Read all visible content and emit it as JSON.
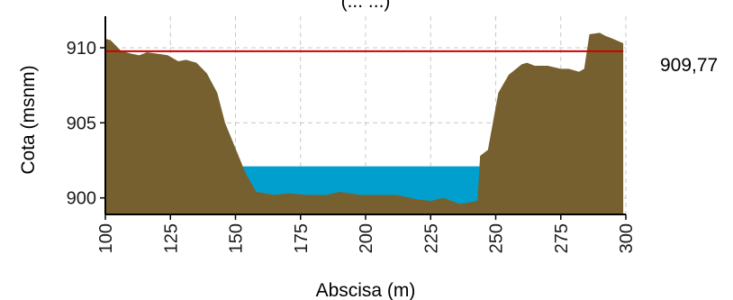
{
  "chart_data": {
    "type": "area",
    "title": "(... ...)",
    "xlabel": "Abscisa (m)",
    "ylabel": "Cota (msnm)",
    "xlim": [
      100,
      300
    ],
    "ylim": [
      898.9,
      912.1
    ],
    "x_ticks": [
      100,
      125,
      150,
      175,
      200,
      225,
      250,
      275,
      300
    ],
    "y_ticks": [
      900,
      905,
      910
    ],
    "grid": true,
    "terrain_color": "#77602f",
    "water_color": "#009fce",
    "line_color": "#cc0000",
    "water_level": 902.1,
    "reference_line": {
      "value": 909.77,
      "label": "909,77"
    },
    "terrain": {
      "x": [
        100,
        102,
        106,
        110,
        113,
        116,
        120,
        124,
        128,
        131,
        135,
        139,
        143,
        146,
        150,
        154,
        158,
        165,
        170,
        178,
        185,
        190,
        198,
        205,
        212,
        220,
        225,
        230,
        236,
        240,
        243,
        244,
        247,
        251,
        255,
        260,
        262,
        265,
        270,
        275,
        278,
        282,
        284,
        286,
        290,
        292,
        295,
        299
      ],
      "y": [
        910.6,
        910.5,
        909.8,
        909.6,
        909.5,
        909.7,
        909.6,
        909.5,
        909.1,
        909.2,
        909.0,
        908.3,
        907.0,
        905.0,
        903.3,
        901.6,
        900.4,
        900.2,
        900.3,
        900.2,
        900.2,
        900.4,
        900.2,
        900.2,
        900.2,
        899.9,
        899.8,
        900.0,
        899.6,
        899.7,
        899.8,
        902.8,
        903.2,
        907.0,
        908.2,
        908.9,
        909.0,
        908.8,
        908.8,
        908.6,
        908.6,
        908.4,
        908.6,
        910.9,
        911.0,
        910.8,
        910.6,
        910.3
      ]
    }
  }
}
